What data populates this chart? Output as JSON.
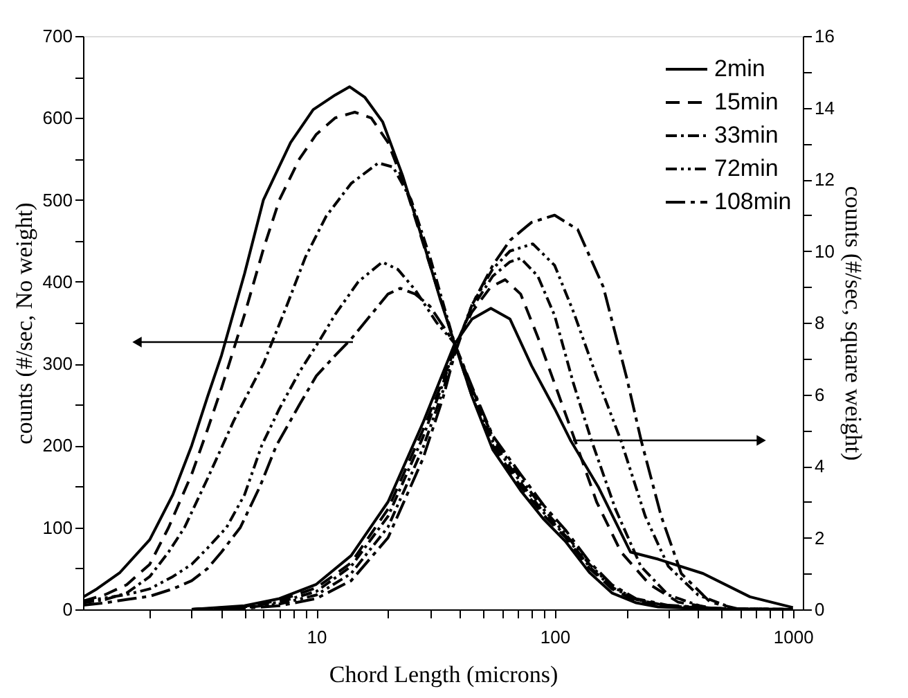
{
  "chart_data": {
    "type": "line",
    "xlabel": "Chord Length (microns)",
    "ylabel": "counts (#/sec, No weight)",
    "y2label": "counts (#/sec, square weight)",
    "log": "x",
    "grid": false,
    "legend": "top right",
    "xlim": [
      1.05,
      1100
    ],
    "xticks": [
      {
        "value": 2,
        "label": null
      },
      {
        "value": 3,
        "label": null
      },
      {
        "value": 4,
        "label": null
      },
      {
        "value": 5,
        "label": null
      },
      {
        "value": 6,
        "label": null
      },
      {
        "value": 7,
        "label": null
      },
      {
        "value": 8,
        "label": null
      },
      {
        "value": 9,
        "label": null
      },
      10,
      {
        "value": 20,
        "label": null
      },
      {
        "value": 30,
        "label": null
      },
      {
        "value": 40,
        "label": null
      },
      {
        "value": 50,
        "label": null
      },
      {
        "value": 60,
        "label": null
      },
      {
        "value": 70,
        "label": null
      },
      {
        "value": 80,
        "label": null
      },
      {
        "value": 90,
        "label": null
      },
      100,
      {
        "value": 200,
        "label": null
      },
      {
        "value": 300,
        "label": null
      },
      {
        "value": 400,
        "label": null
      },
      {
        "value": 500,
        "label": null
      },
      {
        "value": 600,
        "label": null
      },
      {
        "value": 700,
        "label": null
      },
      {
        "value": 800,
        "label": null
      },
      {
        "value": 900,
        "label": null
      },
      1000
    ],
    "ylim": [
      0,
      700
    ],
    "yticks": [
      0,
      {
        "value": 50,
        "label": null
      },
      100,
      {
        "value": 150,
        "label": null
      },
      200,
      {
        "value": 250,
        "label": null
      },
      300,
      {
        "value": 350,
        "label": null
      },
      400,
      {
        "value": 450,
        "label": null
      },
      500,
      {
        "value": 550,
        "label": null
      },
      600,
      {
        "value": 650,
        "label": null
      },
      700
    ],
    "y2lim": [
      0,
      16
    ],
    "y2ticks": [
      0,
      {
        "value": 1,
        "label": null
      },
      2,
      {
        "value": 3,
        "label": null
      },
      4,
      {
        "value": 5,
        "label": null
      },
      6,
      {
        "value": 7,
        "label": null
      },
      8,
      {
        "value": 9,
        "label": null
      },
      10,
      {
        "value": 11,
        "label": null
      },
      12,
      {
        "value": 13,
        "label": null
      },
      14,
      {
        "value": 15,
        "label": null
      },
      16
    ],
    "series": [
      {
        "name": "2min",
        "color": "#000000",
        "line_style": "solid",
        "x": [
          1.05,
          1.2,
          1.5,
          2,
          2.5,
          3,
          3.5,
          4,
          5,
          6,
          7.8,
          9.7,
          12,
          13.8,
          16,
          19,
          23,
          28,
          33,
          38,
          45,
          55,
          72,
          90,
          111,
          140,
          174,
          220,
          272,
          400,
          600,
          1000
        ],
        "values": [
          15,
          25,
          45,
          85,
          140,
          200,
          260,
          310,
          410,
          500,
          570,
          610,
          628,
          638,
          625,
          595,
          530,
          450,
          380,
          325,
          260,
          195,
          145,
          110,
          83,
          45,
          20,
          8,
          3,
          1,
          0,
          0
        ]
      },
      {
        "name": "15min",
        "color": "#000000",
        "line_style": "dashed",
        "x": [
          1.05,
          1.3,
          1.6,
          2,
          2.4,
          3,
          3.5,
          4,
          5,
          6,
          7,
          8.5,
          10,
          12,
          14.5,
          17,
          20,
          24,
          30,
          38,
          45,
          55,
          72,
          90,
          111,
          140,
          174,
          220,
          300,
          500,
          1000
        ],
        "values": [
          10,
          18,
          30,
          55,
          100,
          165,
          220,
          270,
          360,
          440,
          500,
          550,
          580,
          600,
          607,
          600,
          570,
          510,
          420,
          325,
          260,
          200,
          150,
          115,
          88,
          50,
          25,
          10,
          3,
          1,
          0
        ]
      },
      {
        "name": "33min",
        "color": "#000000",
        "line_style": "dashdot",
        "x": [
          1.05,
          1.3,
          1.6,
          2,
          2.4,
          2.8,
          3.5,
          4.5,
          6,
          7.5,
          9,
          11,
          14,
          18.2,
          21,
          25,
          30,
          38,
          45,
          55,
          72,
          90,
          111,
          140,
          174,
          220,
          300,
          500,
          1000
        ],
        "values": [
          8,
          12,
          20,
          40,
          70,
          100,
          160,
          230,
          300,
          370,
          430,
          480,
          520,
          545,
          540,
          500,
          430,
          325,
          265,
          205,
          155,
          118,
          90,
          52,
          27,
          12,
          4,
          1,
          0
        ]
      },
      {
        "name": "72min",
        "color": "#000000",
        "line_style": "dashdotdot",
        "x": [
          1.05,
          1.3,
          1.6,
          2,
          2.5,
          3,
          3.5,
          4.2,
          5,
          5.9,
          7,
          8.5,
          10.2,
          12,
          15,
          18.9,
          22,
          26,
          32,
          38,
          45,
          55,
          72,
          90,
          111,
          140,
          174,
          220,
          300,
          500,
          1000
        ],
        "values": [
          10,
          14,
          18,
          25,
          40,
          55,
          75,
          100,
          140,
          200,
          245,
          290,
          326,
          360,
          400,
          424,
          415,
          390,
          350,
          325,
          270,
          210,
          160,
          122,
          92,
          55,
          28,
          12,
          4,
          1,
          0
        ]
      },
      {
        "name": "108min",
        "color": "#000000",
        "line_style": "longdashdot",
        "x": [
          1.05,
          1.3,
          1.6,
          2,
          2.5,
          3,
          3.5,
          4,
          4.8,
          5.8,
          6.8,
          8.5,
          10,
          12,
          14,
          17,
          20,
          22.5,
          26,
          30,
          38,
          45,
          55,
          72,
          90,
          111,
          140,
          174,
          220,
          300,
          500,
          1000
        ],
        "values": [
          5,
          8,
          12,
          16,
          25,
          35,
          50,
          70,
          100,
          150,
          200,
          250,
          285,
          310,
          330,
          360,
          385,
          392,
          385,
          370,
          325,
          272,
          212,
          165,
          127,
          97,
          58,
          30,
          13,
          5,
          1,
          0
        ]
      },
      {
        "color": "#000000",
        "line_style": "solid",
        "axis": "y2",
        "x": [
          3,
          5,
          7,
          10,
          14,
          20,
          28,
          34,
          38,
          45,
          54,
          65,
          80,
          100,
          117,
          153,
          208,
          272,
          420,
          660,
          1000
        ],
        "values": [
          0,
          0.1,
          0.3,
          0.7,
          1.5,
          3.0,
          5.2,
          6.6,
          7.4,
          8.1,
          8.4,
          8.1,
          6.8,
          5.6,
          4.7,
          3.4,
          1.6,
          1.4,
          1.0,
          0.35,
          0.05
        ]
      },
      {
        "color": "#000000",
        "line_style": "dashed",
        "axis": "y2",
        "x": [
          3,
          5,
          7,
          10,
          14,
          20,
          28,
          34,
          38,
          45,
          54,
          62,
          72,
          85,
          100,
          122,
          150,
          190,
          250,
          330,
          500
        ],
        "values": [
          0,
          0.08,
          0.25,
          0.6,
          1.3,
          2.8,
          5.0,
          6.4,
          7.3,
          8.3,
          9.0,
          9.2,
          8.8,
          7.6,
          6.3,
          4.7,
          3.0,
          1.6,
          0.7,
          0.2,
          0
        ]
      },
      {
        "color": "#000000",
        "line_style": "dashdot",
        "axis": "y2",
        "x": [
          3,
          5,
          7,
          10,
          14,
          20,
          28,
          34,
          38,
          45,
          55,
          65,
          72,
          85,
          100,
          120,
          143,
          180,
          230,
          300,
          450
        ],
        "values": [
          0,
          0.07,
          0.2,
          0.5,
          1.2,
          2.6,
          4.8,
          6.3,
          7.3,
          8.4,
          9.3,
          9.7,
          9.8,
          9.3,
          8.2,
          6.3,
          4.7,
          2.8,
          1.2,
          0.4,
          0
        ]
      },
      {
        "color": "#000000",
        "line_style": "dashdotdot",
        "axis": "y2",
        "x": [
          3,
          5,
          7,
          10,
          14,
          20,
          28,
          34,
          38,
          45,
          55,
          65,
          81,
          100,
          120,
          150,
          190,
          240,
          300,
          400,
          550
        ],
        "values": [
          0,
          0.05,
          0.15,
          0.4,
          1.0,
          2.3,
          4.5,
          6.1,
          7.2,
          8.5,
          9.5,
          10.0,
          10.2,
          9.6,
          8.3,
          6.5,
          4.7,
          2.6,
          1.2,
          0.4,
          0.05
        ]
      },
      {
        "color": "#000000",
        "line_style": "longdashdot",
        "axis": "y2",
        "x": [
          3,
          5,
          7,
          10,
          14,
          20,
          28,
          34,
          38,
          45,
          55,
          65,
          80,
          100,
          125,
          160,
          200,
          231,
          280,
          340,
          450,
          600
        ],
        "values": [
          0,
          0.03,
          0.1,
          0.3,
          0.8,
          2.0,
          4.2,
          5.9,
          7.1,
          8.5,
          9.6,
          10.3,
          10.8,
          11.0,
          10.6,
          9.0,
          6.5,
          4.7,
          2.6,
          1.0,
          0.2,
          0
        ]
      }
    ]
  }
}
